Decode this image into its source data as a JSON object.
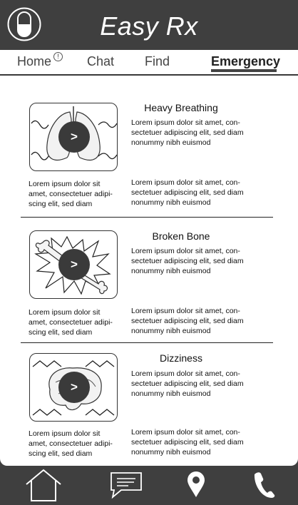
{
  "app": {
    "title": "Easy Rx"
  },
  "tabs": [
    {
      "label": "Home",
      "badge": "!"
    },
    {
      "label": "Chat"
    },
    {
      "label": "Find"
    },
    {
      "label": "Emergency"
    }
  ],
  "cards": [
    {
      "title": "Heavy Breathing",
      "play_label": ">",
      "right_text_1": "Lorem ipsum dolor sit amet, con-\nsectetuer adipiscing elit, sed diam\nnonummy nibh euismod",
      "right_text_2": "Lorem ipsum dolor sit amet, con-\nsectetuer adipiscing elit, sed diam\nnonummy nibh euismod",
      "left_text": "Lorem ipsum dolor sit\namet, consectetuer adipi-\nscing elit, sed diam"
    },
    {
      "title": "Broken Bone",
      "play_label": ">",
      "right_text_1": "Lorem ipsum dolor sit amet, con-\nsectetuer adipiscing elit, sed diam\nnonummy nibh euismod",
      "right_text_2": "Lorem ipsum dolor sit amet, con-\nsectetuer adipiscing elit, sed diam\nnonummy nibh euismod",
      "left_text": "Lorem ipsum dolor sit\namet, consectetuer adipi-\nscing elit, sed diam"
    },
    {
      "title": "Dizziness",
      "play_label": ">",
      "right_text_1": "Lorem ipsum dolor sit amet, con-\nsectetuer adipiscing elit, sed diam\nnonummy nibh euismod",
      "right_text_2": "Lorem ipsum dolor sit amet, con-\nsectetuer adipiscing elit, sed diam\nnonummy nibh euismod",
      "left_text": "Lorem ipsum dolor sit\namet, consectetuer adipi-\nscing elit, sed diam"
    }
  ],
  "bottom_nav": [
    {
      "icon": "home-icon"
    },
    {
      "icon": "chat-bubble-icon"
    },
    {
      "icon": "location-pin-icon"
    },
    {
      "icon": "phone-icon"
    }
  ],
  "colors": {
    "header_bg": "#3f3f3f",
    "accent": "#3a3a3a",
    "content_bg": "#ffffff"
  }
}
